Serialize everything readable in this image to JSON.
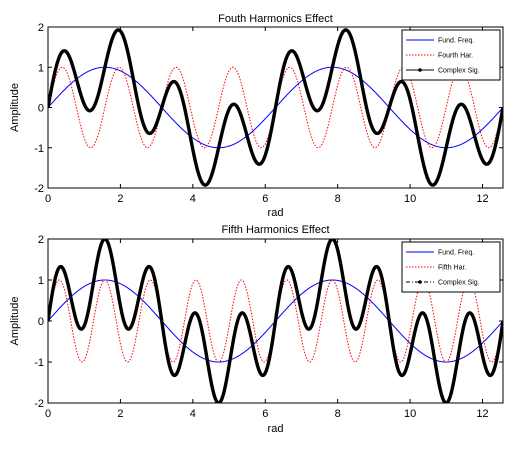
{
  "chart_data": [
    {
      "type": "line",
      "title": "Fouth Harmonics Effect",
      "xlabel": "rad",
      "ylabel": "Amplitude",
      "xlim": [
        0,
        12.566
      ],
      "ylim": [
        -2,
        2
      ],
      "xticks": [
        0,
        2,
        4,
        6,
        8,
        10,
        12
      ],
      "yticks": [
        -2,
        -1,
        0,
        1,
        2
      ],
      "legend_position": "top-right",
      "series": [
        {
          "name": "Fund. Freq.",
          "formula": "sin(x)",
          "color": "#0000ff",
          "style": "solid"
        },
        {
          "name": "Fourth Har.",
          "formula": "sin(4x)",
          "color": "#ff0000",
          "style": "dotted"
        },
        {
          "name": "Complex Sig.",
          "formula": "sin(x)+sin(4x)",
          "color": "#000000",
          "style": "solid-marker"
        }
      ]
    },
    {
      "type": "line",
      "title": "Fifth Harmonics Effect",
      "xlabel": "rad",
      "ylabel": "Amplitude",
      "xlim": [
        0,
        12.566
      ],
      "ylim": [
        -2,
        2
      ],
      "xticks": [
        0,
        2,
        4,
        6,
        8,
        10,
        12
      ],
      "yticks": [
        -2,
        -1,
        0,
        1,
        2
      ],
      "legend_position": "top-right",
      "series": [
        {
          "name": "Fund. Freq.",
          "formula": "sin(x)",
          "color": "#0000ff",
          "style": "solid"
        },
        {
          "name": "Fifth Har.",
          "formula": "sin(5x)",
          "color": "#ff0000",
          "style": "dotted"
        },
        {
          "name": "Complex Sig.",
          "formula": "sin(x)+sin(5x)",
          "color": "#000000",
          "style": "dashdot-marker"
        }
      ]
    }
  ]
}
